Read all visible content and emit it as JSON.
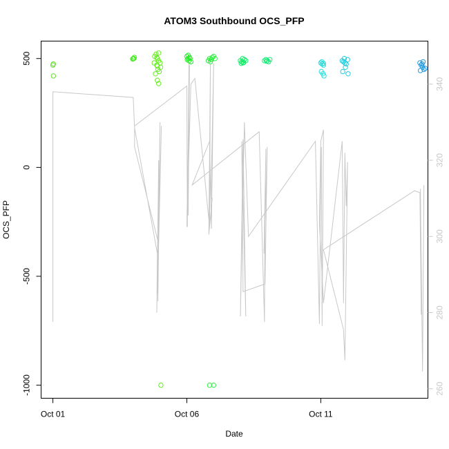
{
  "chart_data": {
    "type": "scatter",
    "title": "ATOM3 Southbound OCS_PFP",
    "xlabel": "Date",
    "ylabel": "OCS_PFP",
    "x_tick_labels": [
      "Oct 01",
      "Oct 06",
      "Oct 11"
    ],
    "x_tick_values": [
      1,
      6,
      11
    ],
    "xlim": [
      0.56,
      15.0
    ],
    "y_ticks": [
      500,
      0,
      -500,
      -1000
    ],
    "y_tick_labels": [
      "500",
      "0",
      "-500",
      "-1000"
    ],
    "ylim": [
      -1060,
      580
    ],
    "y2_ticks": [
      340,
      320,
      300,
      280,
      260
    ],
    "y2_tick_labels": [
      "340",
      "320",
      "300",
      "280",
      "260"
    ],
    "y2lim": [
      257.5,
      351.3
    ],
    "grid": false,
    "legend": "none",
    "colors": {
      "points_early": "#66dd33",
      "points_mid_green": "#33ee33",
      "points_green_teal": "#11ee88",
      "points_cyan": "#22ccee",
      "points_blue": "#2299dd",
      "line": "#c8c8c8",
      "axis": "#000000",
      "right_axis": "#c8c8c8"
    },
    "point_series": [
      {
        "color": "#66dd33",
        "x": [
          1.0,
          1.02,
          1.02
        ],
        "y": [
          470,
          475,
          420
        ]
      },
      {
        "color": "#44ee22",
        "x": [
          4.0,
          4.02,
          4.04,
          3.98
        ],
        "y": [
          500,
          500,
          505,
          498
        ]
      },
      {
        "color": "#66ee22",
        "x": [
          4.8,
          4.85,
          4.9,
          4.95,
          5.0,
          5.02,
          4.88,
          4.92,
          4.97,
          4.83,
          4.9,
          4.95,
          4.78,
          4.88,
          4.95,
          4.9,
          5.03
        ],
        "y": [
          510,
          520,
          500,
          490,
          480,
          460,
          470,
          450,
          440,
          430,
          400,
          385,
          480,
          505,
          525,
          465,
          -1000
        ]
      },
      {
        "color": "#22ee22",
        "x": [
          6.0,
          6.05,
          6.1,
          6.02,
          6.08,
          6.12,
          6.15,
          6.05
        ],
        "y": [
          510,
          500,
          505,
          495,
          490,
          500,
          485,
          515
        ]
      },
      {
        "color": "#33ee44",
        "x": [
          6.8,
          6.85,
          6.9,
          6.95,
          7.0,
          7.05,
          6.88,
          6.92,
          6.85,
          7.0
        ],
        "y": [
          490,
          500,
          495,
          505,
          510,
          500,
          485,
          495,
          -1000,
          -1000
        ]
      },
      {
        "color": "#11ee66",
        "x": [
          8.0,
          8.05,
          8.1,
          8.15,
          8.2,
          8.08,
          8.03,
          8.12
        ],
        "y": [
          490,
          485,
          480,
          495,
          490,
          500,
          478,
          482
        ]
      },
      {
        "color": "#11ee77",
        "x": [
          8.9,
          8.95,
          9.0,
          9.05,
          9.1,
          8.98
        ],
        "y": [
          490,
          495,
          490,
          485,
          495,
          488
        ]
      },
      {
        "color": "#22dddd",
        "x": [
          11.0,
          11.05,
          11.1,
          11.02,
          11.08,
          11.12,
          11.04,
          11.1
        ],
        "y": [
          480,
          475,
          470,
          440,
          430,
          420,
          485,
          478
        ]
      },
      {
        "color": "#22ccdd",
        "x": [
          11.8,
          11.85,
          11.9,
          11.95,
          12.0,
          11.82,
          11.92,
          11.88,
          12.02
        ],
        "y": [
          490,
          485,
          480,
          475,
          495,
          440,
          460,
          500,
          430
        ]
      },
      {
        "color": "#2299dd",
        "x": [
          14.7,
          14.75,
          14.8,
          14.85,
          14.9,
          14.72,
          14.78,
          14.82
        ],
        "y": [
          480,
          470,
          460,
          450,
          455,
          445,
          475,
          485
        ]
      }
    ],
    "line_series": {
      "name": "",
      "axis": "right",
      "x": [
        1.0,
        1.0,
        1.0,
        4.0,
        4.05,
        4.9,
        4.88,
        4.95,
        4.92,
        5.0,
        4.9,
        5.05,
        4.95,
        4.05,
        4.05,
        6.0,
        6.02,
        6.08,
        6.05,
        6.1,
        6.0,
        6.15,
        6.3,
        6.85,
        6.88,
        6.82,
        6.95,
        6.9,
        7.0,
        6.92,
        6.85,
        6.2,
        8.7,
        8.9,
        8.92,
        8.95,
        8.88,
        9.0,
        8.92,
        8.1,
        8.05,
        8.2,
        8.1,
        8.1,
        8.0,
        8.15,
        8.3,
        10.8,
        10.95,
        11.0,
        11.02,
        11.05,
        11.1,
        11.0,
        10.95,
        11.1,
        11.8,
        11.85,
        11.9,
        11.95,
        12.0,
        11.9,
        11.85,
        11.1,
        14.5,
        14.7,
        14.75,
        14.72,
        14.8,
        14.85
      ],
      "y": [
        277.6,
        338.0,
        338.0,
        336.5,
        328.5,
        295.5,
        280.0,
        320.0,
        283.0,
        330.0,
        285.0,
        329.0,
        298.0,
        323.5,
        329.0,
        339.5,
        302.5,
        345.5,
        305.5,
        345.0,
        302.5,
        340.0,
        341.5,
        302.5,
        345.5,
        300.5,
        310.0,
        310.0,
        345.5,
        302.0,
        325.0,
        313.5,
        327.5,
        277.5,
        310.0,
        323.0,
        295.5,
        323.5,
        287.5,
        285.5,
        325.0,
        279.0,
        325.5,
        325.5,
        279.0,
        330.0,
        300.0,
        325.0,
        277.0,
        318.5,
        323.5,
        276.5,
        328.0,
        325.0,
        303.5,
        282.5,
        325.0,
        282.5,
        322.0,
        308.0,
        319.5,
        267.5,
        275.5,
        296.5,
        312.0,
        311.5,
        279.5,
        312.5,
        264.5,
        313.5
      ]
    }
  }
}
